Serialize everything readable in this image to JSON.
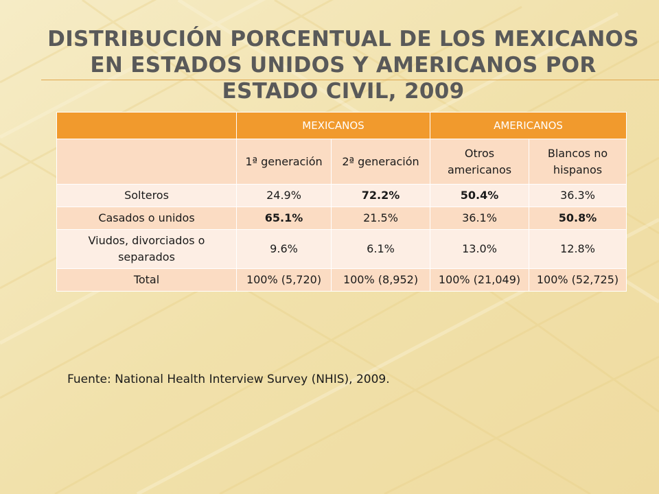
{
  "slide": {
    "title": "Distribución porcentual de los mexicanos en Estados Unidos y americanos por estado civil, 2009",
    "source": "Fuente: National Health Interview Survey (NHIS), 2009."
  },
  "colors": {
    "header_orange": "#f19a2d",
    "row_light": "#fdeee4",
    "row_dark": "#fbdcc3",
    "title_gray": "#595959"
  },
  "table": {
    "group_headers": [
      "",
      "MEXICANOS",
      "AMERICANOS"
    ],
    "sub_headers": [
      "1ª generación",
      "2ª generación",
      "Otros americanos",
      "Blancos no hispanos"
    ],
    "rows": [
      {
        "label": "Solteros",
        "cells": [
          {
            "text": "24.9%",
            "bold": false
          },
          {
            "text": "72.2%",
            "bold": true
          },
          {
            "text": "50.4%",
            "bold": true
          },
          {
            "text": "36.3%",
            "bold": false
          }
        ]
      },
      {
        "label": "Casados o unidos",
        "cells": [
          {
            "text": "65.1%",
            "bold": true
          },
          {
            "text": "21.5%",
            "bold": false
          },
          {
            "text": "36.1%",
            "bold": false
          },
          {
            "text": "50.8%",
            "bold": true
          }
        ]
      },
      {
        "label": "Viudos, divorciados o separados",
        "cells": [
          {
            "text": "9.6%",
            "bold": false
          },
          {
            "text": "6.1%",
            "bold": false
          },
          {
            "text": "13.0%",
            "bold": false
          },
          {
            "text": "12.8%",
            "bold": false
          }
        ]
      },
      {
        "label": "Total",
        "cells": [
          {
            "text": "100% (5,720)",
            "bold": false
          },
          {
            "text": "100% (8,952)",
            "bold": false
          },
          {
            "text": "100% (21,049)",
            "bold": false
          },
          {
            "text": "100% (52,725)",
            "bold": false
          }
        ]
      }
    ]
  }
}
